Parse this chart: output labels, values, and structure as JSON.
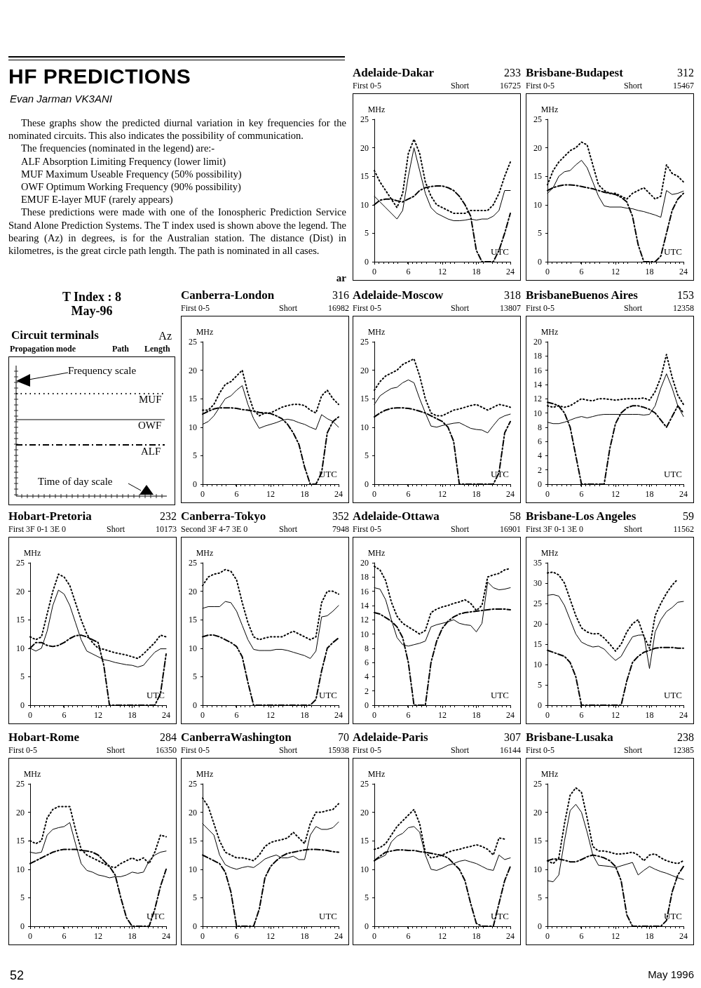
{
  "chart_data": [
    {
      "type": "other",
      "title": "HF PREDICTIONS",
      "subtitle": "Evan Jarman VK3ANI",
      "annotations": [
        "These graphs show the predicted diurnal variation in key frequencies for the nominated circuits. This also indicates the possibility of communication.",
        "The frequencies (nominated in the legend) are:-",
        "ALF Absorption Limiting Frequency (lower limit)",
        "MUF Maximum Useable Frequency (50% possibility)",
        "OWF Optimum Working Frequency (90% possibility)",
        "EMUF E-layer MUF (rarely appears)",
        "These predictions were made with one of the Ionospheric Prediction Service Stand Alone Prediction Systems. The T index used is shown above the legend. The bearing (Az) in degrees, is for the Australian station. The distance (Dist) in kilometres, is the great circle path length. The path is nominated in all cases.",
        "ar",
        "T Index : 8",
        "May-96",
        "Circuit terminals",
        "Az",
        "Propagation mode",
        "Path",
        "Length",
        "Frequency scale",
        "MUF",
        "OWF",
        "ALF",
        "Time of day scale",
        "52",
        "May 1996"
      ]
    },
    {
      "type": "line",
      "title": "Adelaide-Dakar",
      "annotations": [
        "233",
        "First 0-5",
        "Short",
        "16725"
      ],
      "xlabel": "UTC",
      "ylabel": "MHz",
      "marker": "none",
      "x": [
        0,
        1,
        2,
        3,
        4,
        5,
        6,
        7,
        8,
        9,
        10,
        11,
        12,
        13,
        14,
        15,
        16,
        17,
        18,
        19,
        20,
        21,
        22,
        23,
        24
      ],
      "xlim": [
        0,
        24
      ],
      "xticks": [
        0,
        6,
        12,
        18,
        24
      ],
      "ylim": [
        0,
        25
      ],
      "yticks": [
        0,
        5,
        10,
        15,
        20,
        25
      ],
      "series": [
        {
          "color": "#000000",
          "line_style": "dotted",
          "values": [
            16,
            14,
            12.5,
            11,
            9.5,
            12,
            19,
            21.5,
            19,
            14,
            11.5,
            10,
            9.5,
            9,
            8.5,
            8.5,
            8.5,
            9,
            9,
            9,
            9,
            10,
            12,
            15,
            17.5
          ]
        },
        {
          "color": "#000000",
          "line_style": "solid",
          "values": [
            11.5,
            10.5,
            9.5,
            8.5,
            7.5,
            9,
            15,
            20,
            16,
            12,
            9.5,
            8.5,
            8,
            7.5,
            7.2,
            7.2,
            7.3,
            7.5,
            7.3,
            7.5,
            7.5,
            8,
            9,
            12.5,
            12.5
          ]
        },
        {
          "color": "#000000",
          "line_style": "dashed",
          "values": [
            10,
            10.8,
            11,
            11,
            10.7,
            10.5,
            11,
            11.5,
            12.5,
            13,
            13.2,
            13.3,
            13.3,
            13,
            12.5,
            11.5,
            10,
            8,
            2,
            0,
            0,
            0,
            2,
            5,
            8.5
          ]
        }
      ]
    },
    {
      "type": "line",
      "title": "Brisbane-Budapest",
      "annotations": [
        "312",
        "First 0-5",
        "Short",
        "15467"
      ],
      "xlabel": "UTC",
      "ylabel": "MHz",
      "marker": "none",
      "x": [
        0,
        1,
        2,
        3,
        4,
        5,
        6,
        7,
        8,
        9,
        10,
        11,
        12,
        13,
        14,
        15,
        16,
        17,
        18,
        19,
        20,
        21,
        22,
        23,
        24
      ],
      "xlim": [
        0,
        24
      ],
      "xticks": [
        0,
        6,
        12,
        18,
        24
      ],
      "ylim": [
        0,
        25
      ],
      "yticks": [
        0,
        5,
        10,
        15,
        20,
        25
      ],
      "series": [
        {
          "color": "#000000",
          "line_style": "dotted",
          "values": [
            13.5,
            16,
            17.5,
            18.5,
            19.5,
            20,
            21,
            20.5,
            17,
            13.5,
            12.5,
            12,
            12,
            11.5,
            11,
            12,
            12.5,
            13,
            12,
            11,
            11.5,
            17,
            15.5,
            15,
            14
          ]
        },
        {
          "color": "#000000",
          "line_style": "solid",
          "values": [
            12,
            13,
            15,
            15.8,
            16,
            17,
            17.8,
            16.5,
            14,
            11.5,
            9.8,
            9.6,
            9.6,
            9.6,
            9.4,
            9.3,
            9,
            8.8,
            8.5,
            8.2,
            7.8,
            12.5,
            11.8,
            12,
            12.4
          ]
        },
        {
          "color": "#000000",
          "line_style": "dashed",
          "values": [
            12.5,
            13,
            13.3,
            13.5,
            13.5,
            13.4,
            13.2,
            13,
            12.8,
            12.5,
            12.2,
            12,
            11.8,
            11.3,
            10.5,
            8,
            3,
            0,
            0,
            0,
            1,
            5,
            9,
            11,
            12
          ]
        }
      ]
    },
    {
      "type": "line",
      "title": "Canberra-London",
      "annotations": [
        "316",
        "First 0-5",
        "Short",
        "16982"
      ],
      "xlabel": "UTC",
      "ylabel": "MHz",
      "marker": "none",
      "x": [
        0,
        1,
        2,
        3,
        4,
        5,
        6,
        7,
        8,
        9,
        10,
        11,
        12,
        13,
        14,
        15,
        16,
        17,
        18,
        19,
        20,
        21,
        22,
        23,
        24
      ],
      "xlim": [
        0,
        24
      ],
      "xticks": [
        0,
        6,
        12,
        18,
        24
      ],
      "ylim": [
        0,
        25
      ],
      "yticks": [
        0,
        5,
        10,
        15,
        20,
        25
      ],
      "series": [
        {
          "color": "#000000",
          "line_style": "dotted",
          "values": [
            13,
            13,
            14,
            16,
            17.5,
            18,
            19,
            20,
            16,
            13,
            12,
            12.5,
            12.5,
            13,
            13.5,
            13.8,
            14,
            14,
            13.8,
            13,
            12.5,
            15.5,
            16.5,
            15,
            14
          ]
        },
        {
          "color": "#000000",
          "line_style": "solid",
          "values": [
            10.5,
            11,
            12,
            13.5,
            15,
            15.5,
            16.5,
            17.3,
            14,
            11.5,
            9.8,
            10.2,
            10.5,
            10.8,
            11.2,
            11.4,
            11.2,
            10.8,
            10.5,
            10,
            9.6,
            12.2,
            11.5,
            11,
            10
          ]
        },
        {
          "color": "#000000",
          "line_style": "dashed",
          "values": [
            12.3,
            12.8,
            13.2,
            13.4,
            13.4,
            13.4,
            13.3,
            13.1,
            13,
            12.8,
            12.6,
            12.5,
            12.4,
            12,
            11.5,
            10.5,
            9,
            7,
            3,
            0,
            0,
            2,
            9,
            11,
            11.8
          ]
        }
      ]
    },
    {
      "type": "line",
      "title": "Adelaide-Moscow",
      "annotations": [
        "318",
        "First 0-5",
        "Short",
        "13807"
      ],
      "xlabel": "UTC",
      "ylabel": "MHz",
      "marker": "none",
      "x": [
        0,
        1,
        2,
        3,
        4,
        5,
        6,
        7,
        8,
        9,
        10,
        11,
        12,
        13,
        14,
        15,
        16,
        17,
        18,
        19,
        20,
        21,
        22,
        23,
        24
      ],
      "xlim": [
        0,
        24
      ],
      "xticks": [
        0,
        6,
        12,
        18,
        24
      ],
      "ylim": [
        0,
        25
      ],
      "yticks": [
        0,
        5,
        10,
        15,
        20,
        25
      ],
      "series": [
        {
          "color": "#000000",
          "line_style": "dotted",
          "values": [
            16.5,
            18,
            19,
            19.5,
            20,
            21,
            21.5,
            22,
            19,
            15,
            12.5,
            12,
            12,
            12.5,
            13,
            13.2,
            13.5,
            13.8,
            14,
            13.5,
            13,
            13.5,
            14,
            13.8,
            13.5
          ]
        },
        {
          "color": "#000000",
          "line_style": "solid",
          "values": [
            14,
            15.5,
            16.2,
            16.8,
            17,
            17.8,
            18.3,
            17.8,
            15,
            12.5,
            10.2,
            10,
            10.3,
            10.5,
            10.7,
            10.8,
            10.3,
            9.8,
            9.6,
            9.5,
            9,
            10.3,
            11.5,
            12,
            12.3
          ]
        },
        {
          "color": "#000000",
          "line_style": "dashed",
          "values": [
            11.8,
            12.5,
            13,
            13.3,
            13.4,
            13.4,
            13.3,
            13.1,
            12.8,
            12.5,
            12,
            11.5,
            11,
            10,
            7.5,
            0,
            0,
            0,
            0,
            0,
            0,
            0,
            2,
            9,
            11
          ]
        }
      ]
    },
    {
      "type": "line",
      "title": "BrisbaneBuenos Aires",
      "annotations": [
        "153",
        "First 0-5",
        "Short",
        "12358"
      ],
      "xlabel": "UTC",
      "ylabel": "MHz",
      "marker": "none",
      "x": [
        0,
        1,
        2,
        3,
        4,
        5,
        6,
        7,
        8,
        9,
        10,
        11,
        12,
        13,
        14,
        15,
        16,
        17,
        18,
        19,
        20,
        21,
        22,
        23,
        24
      ],
      "xlim": [
        0,
        24
      ],
      "xticks": [
        0,
        6,
        12,
        18,
        24
      ],
      "ylim": [
        0,
        20
      ],
      "yticks": [
        0,
        2,
        4,
        6,
        8,
        10,
        12,
        14,
        16,
        18,
        20
      ],
      "series": [
        {
          "color": "#000000",
          "line_style": "dotted",
          "values": [
            11,
            10.8,
            11,
            10.8,
            11,
            11.5,
            12,
            11.8,
            11.7,
            12,
            12,
            11.9,
            11.8,
            11.9,
            12,
            12,
            12,
            12.1,
            11.8,
            13,
            15,
            18.2,
            15,
            12.5,
            11.2
          ]
        },
        {
          "color": "#000000",
          "line_style": "solid",
          "values": [
            8.7,
            8.5,
            8.5,
            8.7,
            9,
            9.3,
            9.5,
            9.3,
            9.5,
            9.7,
            9.8,
            9.8,
            9.8,
            9.8,
            9.8,
            9.8,
            9.8,
            9.7,
            9.8,
            11,
            13.5,
            15.5,
            13.5,
            11,
            9.5
          ]
        },
        {
          "color": "#000000",
          "line_style": "dashed",
          "values": [
            11.5,
            11.3,
            11,
            10,
            8,
            4,
            0,
            0,
            0,
            0,
            0,
            5,
            8.5,
            10,
            10.7,
            11,
            11,
            10.8,
            10.5,
            10,
            9,
            8,
            9.5,
            11,
            10
          ]
        }
      ]
    },
    {
      "type": "line",
      "title": "Hobart-Pretoria",
      "annotations": [
        "232",
        "First 3F 0-1 3E 0",
        "Short",
        "10173"
      ],
      "xlabel": "UTC",
      "ylabel": "MHz",
      "marker": "none",
      "x": [
        0,
        1,
        2,
        3,
        4,
        5,
        6,
        7,
        8,
        9,
        10,
        11,
        12,
        13,
        14,
        15,
        16,
        17,
        18,
        19,
        20,
        21,
        22,
        23,
        24
      ],
      "xlim": [
        0,
        24
      ],
      "xticks": [
        0,
        6,
        12,
        18,
        24
      ],
      "ylim": [
        0,
        25
      ],
      "yticks": [
        0,
        5,
        10,
        15,
        20,
        25
      ],
      "series": [
        {
          "color": "#000000",
          "line_style": "dotted",
          "values": [
            12,
            11.5,
            12,
            16,
            20,
            23,
            22.5,
            21,
            18,
            15,
            12.5,
            11,
            10,
            9.8,
            9.5,
            9.2,
            9,
            8.8,
            8.5,
            8.2,
            9,
            10,
            11,
            12.3,
            12
          ]
        },
        {
          "color": "#000000",
          "line_style": "solid",
          "values": [
            10,
            9.5,
            10,
            13,
            17.5,
            20.2,
            19.5,
            17.5,
            14.5,
            11.5,
            9.5,
            9,
            8.5,
            8,
            7.8,
            7.5,
            7.3,
            7.1,
            7,
            6.7,
            7,
            8.2,
            9.3,
            9.9,
            9.9
          ]
        },
        {
          "color": "#000000",
          "line_style": "dashed",
          "values": [
            10,
            11,
            11,
            10.5,
            10.3,
            10.5,
            11,
            11.7,
            12.2,
            12.3,
            12,
            11.5,
            11,
            7,
            0,
            0,
            0,
            0,
            0,
            0,
            0,
            0,
            0,
            2,
            9
          ]
        }
      ]
    },
    {
      "type": "line",
      "title": "Canberra-Tokyo",
      "annotations": [
        "352",
        "Second 3F 4-7 3E 0",
        "Short",
        "7948"
      ],
      "xlabel": "UTC",
      "ylabel": "MHz",
      "marker": "none",
      "x": [
        0,
        1,
        2,
        3,
        4,
        5,
        6,
        7,
        8,
        9,
        10,
        11,
        12,
        13,
        14,
        15,
        16,
        17,
        18,
        19,
        20,
        21,
        22,
        23,
        24
      ],
      "xlim": [
        0,
        24
      ],
      "xticks": [
        0,
        6,
        12,
        18,
        24
      ],
      "ylim": [
        0,
        25
      ],
      "yticks": [
        0,
        5,
        10,
        15,
        20,
        25
      ],
      "series": [
        {
          "color": "#000000",
          "line_style": "dotted",
          "values": [
            21,
            22.5,
            23,
            23.2,
            23.8,
            23.5,
            22,
            18,
            14.5,
            12,
            11.5,
            11.8,
            12,
            12,
            12,
            12.5,
            13,
            12.5,
            12,
            11.5,
            12,
            18,
            20,
            20,
            19.5
          ]
        },
        {
          "color": "#000000",
          "line_style": "solid",
          "values": [
            17,
            17.3,
            17.3,
            17.3,
            18.2,
            18,
            16.5,
            14,
            11.5,
            9.8,
            9.6,
            9.6,
            9.6,
            9.8,
            9.8,
            9.6,
            9.3,
            9,
            8.7,
            8.2,
            9.5,
            15.5,
            15.7,
            16.5,
            17.5
          ]
        },
        {
          "color": "#000000",
          "line_style": "dashed",
          "values": [
            12,
            12.3,
            12.3,
            12,
            11.5,
            11,
            10.3,
            8.5,
            4,
            0,
            0,
            0,
            0,
            0,
            0,
            0,
            0,
            0,
            0,
            0,
            1,
            6,
            10,
            11,
            11.8
          ]
        }
      ]
    },
    {
      "type": "line",
      "title": "Adelaide-Ottawa",
      "annotations": [
        "58",
        "First 0-5",
        "Short",
        "16901"
      ],
      "xlabel": "UTC",
      "ylabel": "MHz",
      "marker": "none",
      "x": [
        0,
        1,
        2,
        3,
        4,
        5,
        6,
        7,
        8,
        9,
        10,
        11,
        12,
        13,
        14,
        15,
        16,
        17,
        18,
        19,
        20,
        21,
        22,
        23,
        24
      ],
      "xlim": [
        0,
        24
      ],
      "xticks": [
        0,
        6,
        12,
        18,
        24
      ],
      "ylim": [
        0,
        20
      ],
      "yticks": [
        0,
        2,
        4,
        6,
        8,
        10,
        12,
        14,
        16,
        18,
        20
      ],
      "series": [
        {
          "color": "#000000",
          "line_style": "dotted",
          "values": [
            19.5,
            19,
            17.5,
            14.5,
            12.5,
            11.5,
            11,
            10.5,
            10,
            10.5,
            13,
            13.5,
            13.8,
            14,
            14.3,
            14.5,
            14.8,
            14.3,
            13.3,
            14,
            18,
            18.3,
            18.5,
            19,
            19.2
          ]
        },
        {
          "color": "#000000",
          "line_style": "solid",
          "values": [
            16.5,
            16.3,
            14.8,
            12,
            9.5,
            8.5,
            8.3,
            8.5,
            8.7,
            9,
            11,
            11.3,
            11.5,
            11.7,
            12,
            11.5,
            11.3,
            11.2,
            10.3,
            11.5,
            17.3,
            16.5,
            16.2,
            16.3,
            16.5
          ]
        },
        {
          "color": "#000000",
          "line_style": "dashed",
          "values": [
            13,
            12.8,
            12.3,
            11.8,
            11,
            9.5,
            6,
            0,
            0,
            0,
            6,
            9,
            10.8,
            11.8,
            12.4,
            12.8,
            13,
            13.1,
            13.2,
            13.3,
            13.4,
            13.5,
            13.5,
            13.5,
            13.4
          ]
        }
      ]
    },
    {
      "type": "line",
      "title": "Brisbane-Los Angeles",
      "annotations": [
        "59",
        "First 3F 0-1 3E 0",
        "Short",
        "11562"
      ],
      "xlabel": "UTC",
      "ylabel": "MHz",
      "marker": "none",
      "x": [
        0,
        1,
        2,
        3,
        4,
        5,
        6,
        7,
        8,
        9,
        10,
        11,
        12,
        13,
        14,
        15,
        16,
        17,
        18,
        19,
        20,
        21,
        22,
        23,
        24
      ],
      "xlim": [
        0,
        24
      ],
      "xticks": [
        0,
        6,
        12,
        18,
        24
      ],
      "ylim": [
        0,
        35
      ],
      "yticks": [
        0,
        5,
        10,
        15,
        20,
        25,
        30,
        35
      ],
      "series": [
        {
          "color": "#000000",
          "line_style": "dotted",
          "values": [
            32.5,
            32.7,
            32,
            30,
            26,
            22,
            19,
            18,
            17.5,
            17.6,
            16.5,
            15,
            13.3,
            15,
            18,
            20,
            21,
            17,
            14,
            22,
            25,
            27.5,
            29.5,
            31,
            null
          ]
        },
        {
          "color": "#000000",
          "line_style": "solid",
          "values": [
            27,
            27.2,
            26.8,
            24.5,
            21,
            17.5,
            15.5,
            14.8,
            14.3,
            14.5,
            13.8,
            12.3,
            11,
            12,
            14.5,
            16.8,
            17.2,
            17.3,
            9,
            18,
            21,
            23,
            24,
            25.3,
            25.5
          ]
        },
        {
          "color": "#000000",
          "line_style": "dashed",
          "values": [
            13.5,
            13,
            12.5,
            12,
            10.5,
            7,
            0,
            0,
            0,
            0,
            0,
            0,
            0,
            0,
            6,
            10.5,
            12,
            13,
            13.5,
            14,
            14.2,
            14.2,
            14.2,
            14,
            14
          ]
        }
      ]
    },
    {
      "type": "line",
      "title": "Hobart-Rome",
      "annotations": [
        "284",
        "First 0-5",
        "Short",
        "16350"
      ],
      "xlabel": "UTC",
      "ylabel": "MHz",
      "marker": "none",
      "x": [
        0,
        1,
        2,
        3,
        4,
        5,
        6,
        7,
        8,
        9,
        10,
        11,
        12,
        13,
        14,
        15,
        16,
        17,
        18,
        19,
        20,
        21,
        22,
        23,
        24
      ],
      "xlim": [
        0,
        24
      ],
      "xticks": [
        0,
        6,
        12,
        18,
        24
      ],
      "ylim": [
        0,
        25
      ],
      "yticks": [
        0,
        5,
        10,
        15,
        20,
        25
      ],
      "series": [
        {
          "color": "#000000",
          "line_style": "dotted",
          "values": [
            15,
            14.5,
            15,
            19,
            20.5,
            21,
            21,
            21,
            17,
            13.5,
            12.5,
            12,
            11.5,
            11,
            10.5,
            10.3,
            11,
            11.5,
            12,
            11.5,
            12,
            11,
            13,
            16,
            15.7
          ]
        },
        {
          "color": "#000000",
          "line_style": "solid",
          "values": [
            13,
            12.8,
            13,
            16,
            17,
            17.3,
            17.5,
            18.2,
            14.5,
            11,
            9.8,
            9.5,
            9,
            8.8,
            8.5,
            8.7,
            8.7,
            9,
            9.5,
            9.3,
            9.5,
            11.5,
            12.5,
            13,
            13.2
          ]
        },
        {
          "color": "#000000",
          "line_style": "dashed",
          "values": [
            11,
            11.5,
            12,
            12.5,
            13,
            13.3,
            13.5,
            13.5,
            13.5,
            13.3,
            13.2,
            13,
            12.5,
            11.5,
            10.5,
            9,
            5,
            1.5,
            0,
            0,
            0,
            0,
            3,
            7,
            10
          ]
        }
      ]
    },
    {
      "type": "line",
      "title": "CanberraWashington",
      "annotations": [
        "70",
        "First 0-5",
        "Short",
        "15938"
      ],
      "xlabel": "UTC",
      "ylabel": "MHz",
      "marker": "none",
      "x": [
        0,
        1,
        2,
        3,
        4,
        5,
        6,
        7,
        8,
        9,
        10,
        11,
        12,
        13,
        14,
        15,
        16,
        17,
        18,
        19,
        20,
        21,
        22,
        23,
        24
      ],
      "xlim": [
        0,
        24
      ],
      "xticks": [
        0,
        6,
        12,
        18,
        24
      ],
      "ylim": [
        0,
        25
      ],
      "yticks": [
        0,
        5,
        10,
        15,
        20,
        25
      ],
      "series": [
        {
          "color": "#000000",
          "line_style": "dotted",
          "values": [
            22.5,
            21,
            18,
            15,
            13,
            12.5,
            12,
            12,
            11.8,
            11.5,
            12.5,
            14,
            14.7,
            15,
            15.2,
            15.5,
            16.5,
            15.5,
            14.5,
            18,
            20,
            20,
            20.3,
            20.5,
            21.5
          ]
        },
        {
          "color": "#000000",
          "line_style": "solid",
          "values": [
            18,
            17,
            16,
            12.5,
            10.8,
            10.3,
            10,
            10.3,
            10.5,
            10.3,
            11,
            11.8,
            12.2,
            12.5,
            12,
            12,
            12.3,
            11.7,
            11.7,
            16,
            17.5,
            17,
            17,
            17.3,
            18.3
          ]
        },
        {
          "color": "#000000",
          "line_style": "dashed",
          "values": [
            12.5,
            12,
            11.5,
            11,
            9.5,
            6,
            0,
            0,
            0,
            0,
            3,
            8.5,
            10.5,
            11.5,
            12.3,
            12.8,
            13,
            13.2,
            13.4,
            13.5,
            13.5,
            13.4,
            13.3,
            13.1,
            13
          ]
        }
      ]
    },
    {
      "type": "line",
      "title": "Adelaide-Paris",
      "annotations": [
        "307",
        "First 0-5",
        "Short",
        "16144"
      ],
      "xlabel": "UTC",
      "ylabel": "MHz",
      "marker": "none",
      "x": [
        0,
        1,
        2,
        3,
        4,
        5,
        6,
        7,
        8,
        9,
        10,
        11,
        12,
        13,
        14,
        15,
        16,
        17,
        18,
        19,
        20,
        21,
        22,
        23,
        24
      ],
      "xlim": [
        0,
        24
      ],
      "xticks": [
        0,
        6,
        12,
        18,
        24
      ],
      "ylim": [
        0,
        25
      ],
      "yticks": [
        0,
        5,
        10,
        15,
        20,
        25
      ],
      "series": [
        {
          "color": "#000000",
          "line_style": "dotted",
          "values": [
            13.5,
            13.8,
            14.5,
            16,
            17.5,
            18.5,
            19.5,
            20.5,
            18,
            13,
            12,
            12.2,
            12.5,
            13,
            13.3,
            13.5,
            13.8,
            14,
            14.3,
            14,
            13.5,
            12.5,
            15.5,
            15.3,
            null
          ]
        },
        {
          "color": "#000000",
          "line_style": "solid",
          "values": [
            11.5,
            12,
            12.5,
            14.8,
            15.8,
            16.3,
            17.3,
            17.5,
            16.5,
            12.5,
            10,
            9.8,
            10.2,
            10.7,
            11,
            11.4,
            11.6,
            11.3,
            11,
            10.5,
            10,
            9.8,
            12.5,
            11.7,
            12
          ]
        },
        {
          "color": "#000000",
          "line_style": "dashed",
          "values": [
            11.5,
            12.3,
            13,
            13.2,
            13.4,
            13.4,
            13.3,
            13.3,
            13.1,
            13,
            12.8,
            12.6,
            12.4,
            12,
            11,
            10,
            8,
            4,
            0.5,
            0,
            0,
            0,
            4,
            8,
            10.5
          ]
        }
      ]
    },
    {
      "type": "line",
      "title": "Brisbane-Lusaka",
      "annotations": [
        "238",
        "First 0-5",
        "Short",
        "12385"
      ],
      "xlabel": "UTC",
      "ylabel": "MHz",
      "marker": "none",
      "x": [
        0,
        1,
        2,
        3,
        4,
        5,
        6,
        7,
        8,
        9,
        10,
        11,
        12,
        13,
        14,
        15,
        16,
        17,
        18,
        19,
        20,
        21,
        22,
        23,
        24
      ],
      "xlim": [
        0,
        24
      ],
      "xticks": [
        0,
        6,
        12,
        18,
        24
      ],
      "ylim": [
        0,
        25
      ],
      "yticks": [
        0,
        5,
        10,
        15,
        20,
        25
      ],
      "series": [
        {
          "color": "#000000",
          "line_style": "dotted",
          "values": [
            11.5,
            11,
            12,
            18,
            23,
            24.3,
            23.5,
            19,
            14,
            13.2,
            13.2,
            13,
            12.7,
            12.7,
            12.8,
            13,
            12.5,
            11.5,
            12.5,
            12.7,
            12,
            11.5,
            11.2,
            11,
            11.5
          ]
        },
        {
          "color": "#000000",
          "line_style": "solid",
          "values": [
            8,
            7.8,
            9,
            15,
            20.3,
            21.4,
            20,
            16.5,
            12.5,
            10.7,
            10.6,
            10.5,
            10.3,
            10.6,
            10.9,
            11.2,
            9,
            9.8,
            10.5,
            10,
            9.6,
            9.3,
            8.9,
            8.5,
            8.2
          ]
        },
        {
          "color": "#000000",
          "line_style": "dashed",
          "values": [
            11.5,
            11.8,
            11.8,
            11.6,
            11.3,
            11.3,
            11.7,
            12.2,
            12.5,
            12.3,
            12,
            11.5,
            10.5,
            8,
            2,
            0,
            0,
            0,
            0,
            0,
            0,
            1,
            6,
            9,
            10.5
          ]
        }
      ]
    }
  ]
}
